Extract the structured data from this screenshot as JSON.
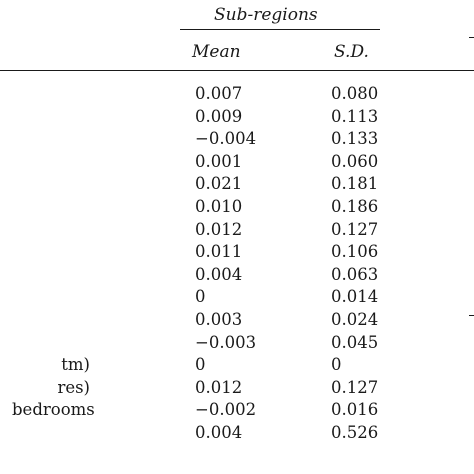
{
  "table": {
    "group_header": "Sub-regions",
    "columns": {
      "mean": "Mean",
      "sd": "S.D."
    },
    "rows": [
      {
        "label": "",
        "mean": "0.007",
        "sd": "0.080"
      },
      {
        "label": "",
        "mean": "0.009",
        "sd": "0.113"
      },
      {
        "label": "",
        "mean": "−0.004",
        "sd": "0.133"
      },
      {
        "label": "",
        "mean": "0.001",
        "sd": "0.060"
      },
      {
        "label": "",
        "mean": "0.021",
        "sd": "0.181"
      },
      {
        "label": "",
        "mean": "0.010",
        "sd": "0.186"
      },
      {
        "label": "",
        "mean": "0.012",
        "sd": "0.127"
      },
      {
        "label": "",
        "mean": "0.011",
        "sd": "0.106"
      },
      {
        "label": "",
        "mean": "0.004",
        "sd": "0.063"
      },
      {
        "label": "",
        "mean": "0",
        "sd": "0.014"
      },
      {
        "label": "",
        "mean": "0.003",
        "sd": "0.024"
      },
      {
        "label": "",
        "mean": "−0.003",
        "sd": "0.045"
      },
      {
        "label": "tm)",
        "mean": "0",
        "sd": "0"
      },
      {
        "label": "res)",
        "mean": "0.012",
        "sd": "0.127"
      },
      {
        "label": "bedrooms",
        "mean": "−0.002",
        "sd": "0.016"
      },
      {
        "label": "",
        "mean": "0.004",
        "sd": "0.526"
      }
    ]
  }
}
